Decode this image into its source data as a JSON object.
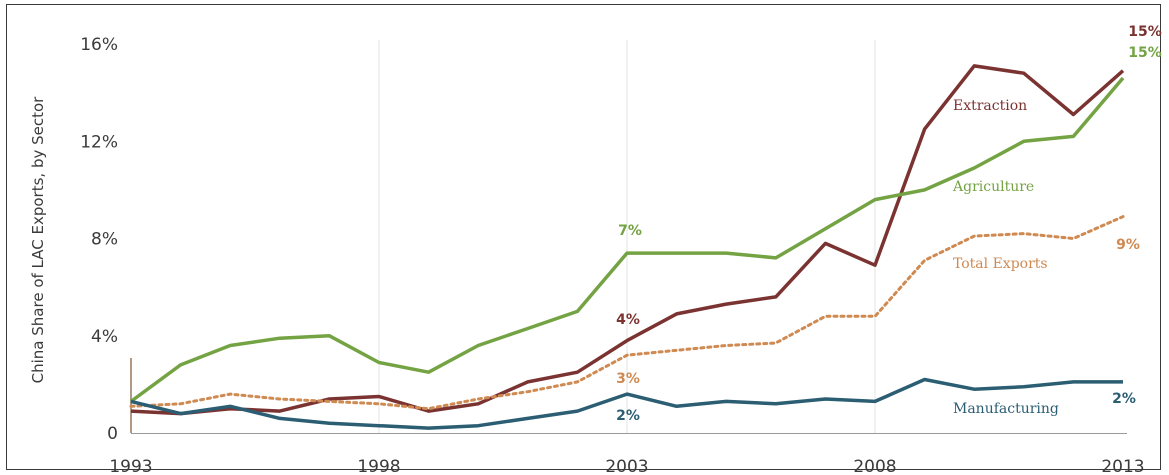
{
  "chart_data": {
    "type": "line",
    "ylabel": "China Share of LAC Exports, by Sector",
    "xlabel": "",
    "x": [
      1993,
      1994,
      1995,
      1996,
      1997,
      1998,
      1999,
      2000,
      2001,
      2002,
      2003,
      2004,
      2005,
      2006,
      2007,
      2008,
      2009,
      2010,
      2011,
      2012,
      2013
    ],
    "xticks": [
      1993,
      1998,
      2003,
      2008,
      2013
    ],
    "xlim": [
      1993,
      2013
    ],
    "ylim": [
      0,
      16
    ],
    "yticks": [
      {
        "value": 0,
        "label": "0"
      },
      {
        "value": 4,
        "label": "4%"
      },
      {
        "value": 8,
        "label": "8%"
      },
      {
        "value": 12,
        "label": "12%"
      },
      {
        "value": 16,
        "label": "16%"
      }
    ],
    "vgrid": [
      1998,
      2003,
      2008
    ],
    "grid": "vertical",
    "series": [
      {
        "key": "extraction",
        "name": "Extraction",
        "color": "#7b3331",
        "dash": "",
        "values": [
          0.9,
          0.8,
          1.0,
          0.9,
          1.4,
          1.5,
          0.9,
          1.2,
          2.1,
          2.5,
          3.8,
          4.9,
          5.3,
          5.6,
          7.8,
          6.9,
          12.5,
          15.1,
          14.8,
          13.1,
          14.9
        ]
      },
      {
        "key": "agriculture",
        "name": "Agriculture",
        "color": "#74a343",
        "dash": "",
        "values": [
          1.3,
          2.8,
          3.6,
          3.9,
          4.0,
          2.9,
          2.5,
          3.6,
          4.3,
          5.0,
          7.4,
          7.4,
          7.4,
          7.2,
          8.4,
          9.6,
          10.0,
          10.9,
          12.0,
          12.2,
          14.6
        ]
      },
      {
        "key": "total_exports",
        "name": "Total Exports",
        "color": "#cf8a52",
        "dash": "3 4",
        "values": [
          1.1,
          1.2,
          1.6,
          1.4,
          1.3,
          1.2,
          1.0,
          1.4,
          1.7,
          2.1,
          3.2,
          3.4,
          3.6,
          3.7,
          4.8,
          4.8,
          7.1,
          8.1,
          8.2,
          8.0,
          8.9
        ]
      },
      {
        "key": "manufacturing",
        "name": "Manufacturing",
        "color": "#2b5e73",
        "dash": "",
        "values": [
          1.3,
          0.8,
          1.1,
          0.6,
          0.4,
          0.3,
          0.2,
          0.3,
          0.6,
          0.9,
          1.6,
          1.1,
          1.3,
          1.2,
          1.4,
          1.3,
          2.2,
          1.8,
          1.9,
          2.1,
          2.1
        ]
      }
    ],
    "annotations": [
      {
        "text": "7%",
        "x": 2003,
        "y": 7.4,
        "series": "agriculture"
      },
      {
        "text": "4%",
        "x": 2003,
        "y": 3.8,
        "series": "extraction"
      },
      {
        "text": "3%",
        "x": 2003,
        "y": 3.2,
        "series": "total_exports"
      },
      {
        "text": "2%",
        "x": 2003,
        "y": 1.6,
        "series": "manufacturing"
      },
      {
        "text": "15%",
        "x": 2013,
        "y": 15.1,
        "series": "extraction"
      },
      {
        "text": "15%",
        "x": 2013,
        "y": 14.6,
        "series": "agriculture"
      },
      {
        "text": "9%",
        "x": 2013,
        "y": 8.9,
        "series": "total_exports"
      },
      {
        "text": "2%",
        "x": 2013,
        "y": 2.1,
        "series": "manufacturing"
      }
    ]
  }
}
